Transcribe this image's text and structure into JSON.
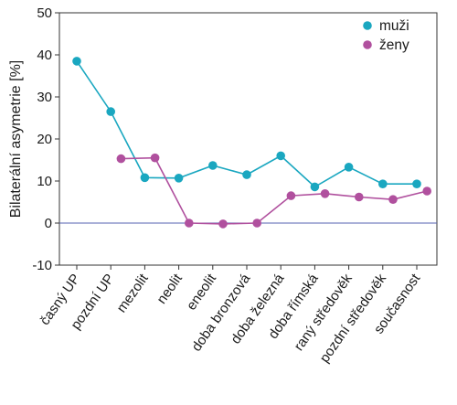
{
  "chart_data": {
    "type": "line",
    "title": "",
    "xlabel": "",
    "ylabel": "Bilaterální asymetrie [%]",
    "ylim": [
      -10,
      50
    ],
    "yticks": [
      -10,
      0,
      10,
      20,
      30,
      40,
      50
    ],
    "grid": false,
    "legend_position": "top-right",
    "zero_line": true,
    "categories": [
      "časný UP",
      "pozdní UP",
      "mezolit",
      "neolit",
      "eneolit",
      "doba bronzová",
      "doba železná",
      "doba římská",
      "raný středověk",
      "pozdní středověk",
      "současnost"
    ],
    "series": [
      {
        "name": "muži",
        "color": "#1aa7c0",
        "x": [
          0,
          1,
          2,
          3,
          4,
          5,
          6,
          7,
          8,
          9,
          10
        ],
        "values": [
          38.5,
          26.5,
          10.8,
          10.7,
          13.7,
          11.5,
          16.0,
          8.6,
          13.3,
          9.3,
          9.3
        ]
      },
      {
        "name": "ženy",
        "color": "#b0509e",
        "x": [
          1,
          2,
          3,
          4,
          5,
          6,
          7,
          8,
          9,
          10
        ],
        "x_offset": 0.3,
        "values": [
          15.3,
          15.5,
          0.0,
          -0.2,
          0.0,
          6.5,
          7.0,
          6.2,
          5.6,
          7.6
        ]
      }
    ]
  }
}
